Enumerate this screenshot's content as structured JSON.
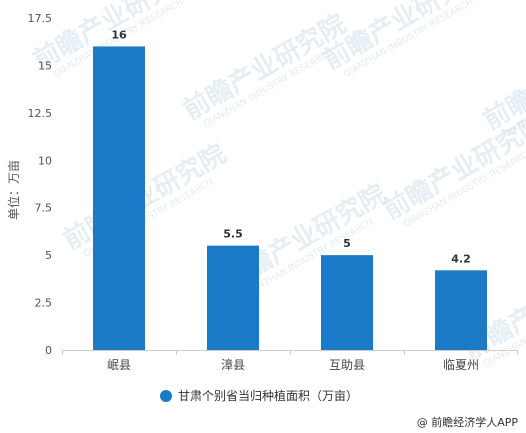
{
  "chart_data": {
    "type": "bar",
    "categories": [
      "岷县",
      "漳县",
      "互助县",
      "临夏州"
    ],
    "series": [
      {
        "name": "甘肃个别省当归种植面积（万亩）",
        "values": [
          16,
          5.5,
          5,
          4.2
        ],
        "color": "#1a7ac7"
      }
    ],
    "data_labels": [
      "16",
      "5.5",
      "5",
      "4.2"
    ],
    "ylabel": "单位：万亩",
    "ylim": [
      0,
      17.5
    ],
    "yticks": [
      "0",
      "2.5",
      "5",
      "7.5",
      "10",
      "12.5",
      "15",
      "17.5"
    ],
    "ytick_values": [
      0,
      2.5,
      5,
      7.5,
      10,
      12.5,
      15,
      17.5
    ],
    "grid": false,
    "legend_position": "bottom"
  },
  "watermark": {
    "text": "前瞻产业研究院",
    "subtext": "QIANZHAN INDUSTRY RESEARCH"
  },
  "source": "@ 前瞻经济学人APP"
}
